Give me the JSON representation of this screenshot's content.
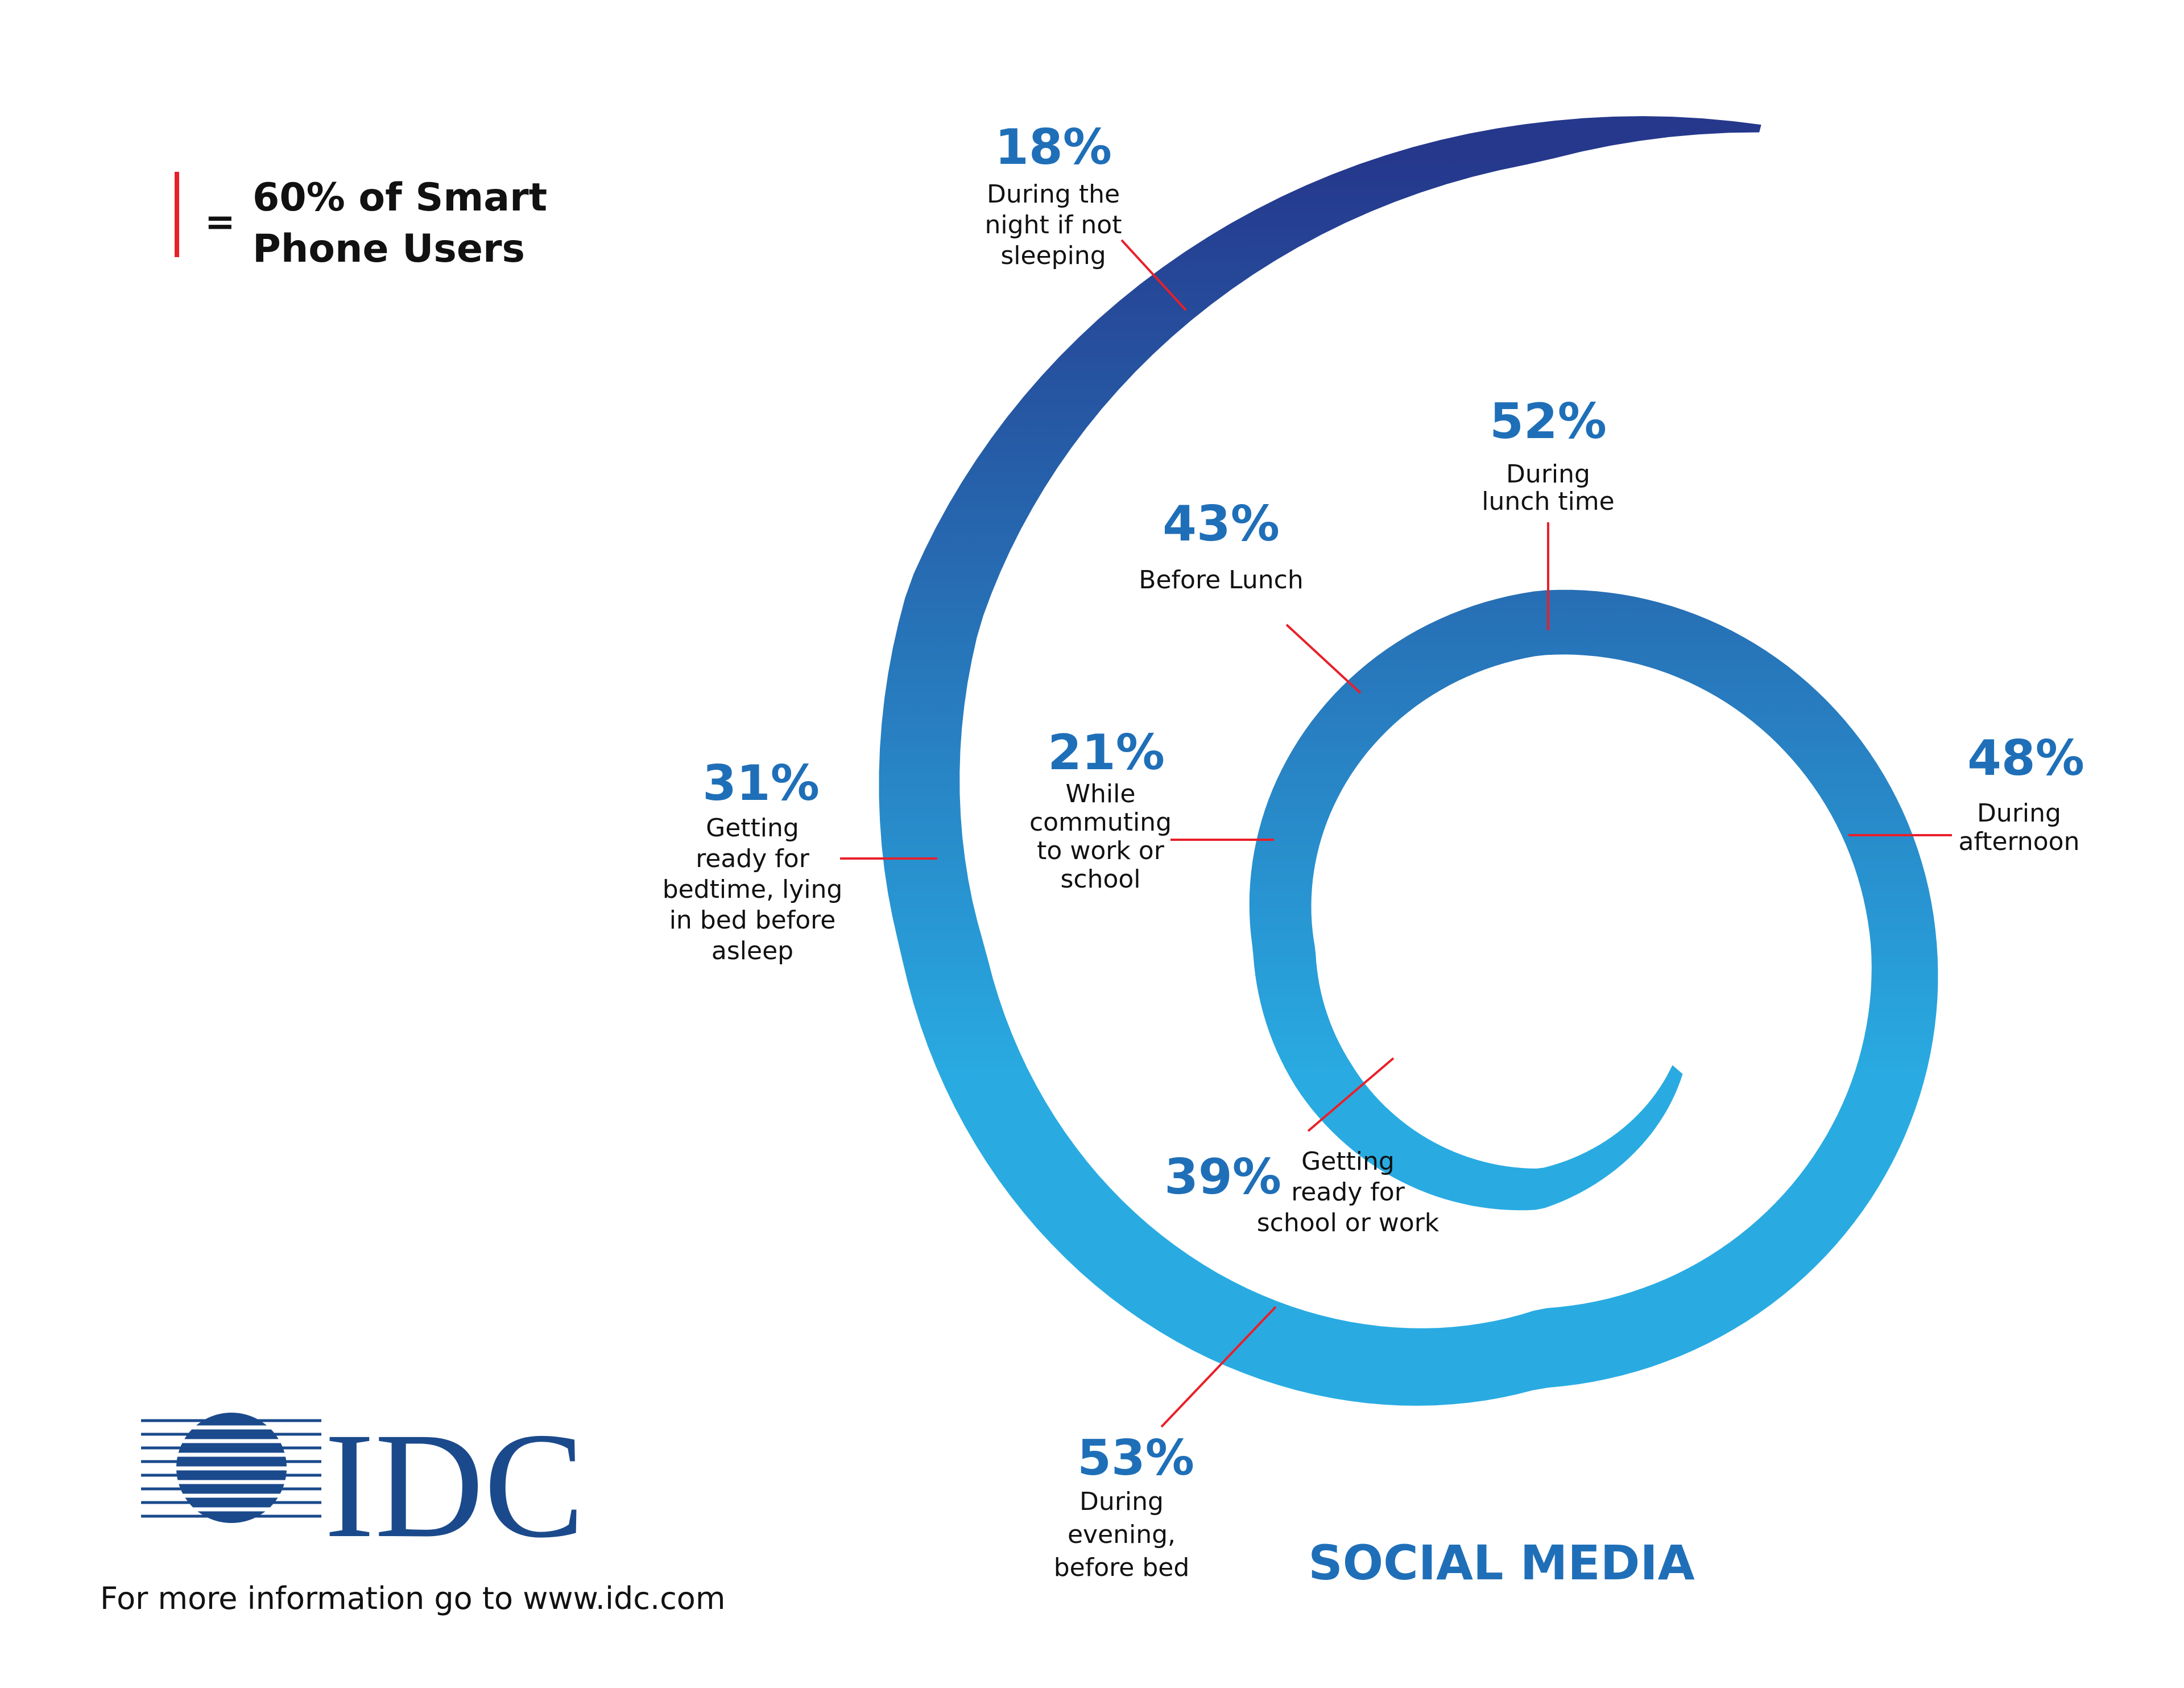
{
  "legend": {
    "equals": "=",
    "line1": "60% of Smart",
    "line2": "Phone Users",
    "marker_color": "#e8202a"
  },
  "logo": {
    "text": "IDC",
    "color": "#1b4a8c"
  },
  "footer": {
    "text": "For more information go to www.idc.com"
  },
  "chart_data": {
    "type": "spiral-radial-bar",
    "title": "SOCIAL MEDIA",
    "unit": "%",
    "colors": {
      "value": "#1f6fb8",
      "label": "#111111",
      "leader": "#e8202a",
      "spiral_start": "#29abe2",
      "spiral_end": "#25388c"
    },
    "items": [
      {
        "value": 39,
        "value_text": "39%",
        "label": [
          "Getting",
          "ready for",
          "school or work"
        ]
      },
      {
        "value": 21,
        "value_text": "21%",
        "label": [
          "While",
          "commuting",
          "to work or",
          "school"
        ]
      },
      {
        "value": 43,
        "value_text": "43%",
        "label": [
          "Before Lunch"
        ]
      },
      {
        "value": 52,
        "value_text": "52%",
        "label": [
          "During",
          "lunch time"
        ]
      },
      {
        "value": 48,
        "value_text": "48%",
        "label": [
          "During",
          "afternoon"
        ]
      },
      {
        "value": 53,
        "value_text": "53%",
        "label": [
          "During",
          "evening,",
          "before bed"
        ]
      },
      {
        "value": 31,
        "value_text": "31%",
        "label": [
          "Getting",
          "ready for",
          "bedtime, lying",
          "in bed before",
          "asleep"
        ]
      },
      {
        "value": 18,
        "value_text": "18%",
        "label": [
          "During the",
          "night if not",
          "sleeping"
        ]
      }
    ]
  }
}
